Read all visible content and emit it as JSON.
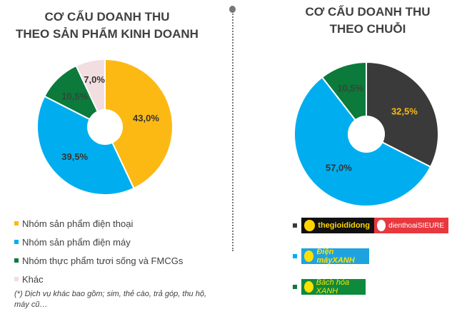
{
  "chart_data": [
    {
      "type": "pie",
      "title_line1": "CƠ CẤU DOANH THU",
      "title_line2": "THEO SẢN PHẨM KINH DOANH",
      "categories": [
        "Nhóm sản phẩm điện thoại",
        "Nhóm sản phẩm điện máy",
        "Nhóm thực phẩm tươi sống và FMCGs",
        "Khác"
      ],
      "values": [
        43.0,
        39.5,
        10.5,
        7.0
      ],
      "labels": [
        "43,0%",
        "39,5%",
        "10,5%",
        "7,0%"
      ],
      "colors": [
        "#FDB913",
        "#00AEEF",
        "#0B7A3B",
        "#F2DDE0"
      ],
      "label_colors": [
        "#333333",
        "#333333",
        "#2E4A36",
        "#333333"
      ],
      "legend": "bottom-left"
    },
    {
      "type": "pie",
      "title_line1": "CƠ CẤU DOANH THU",
      "title_line2": "THEO CHUỖI",
      "categories": [
        "thegioididong + dienthoaiSIEURE",
        "Điện máy XANH",
        "Bách hóa XANH"
      ],
      "values": [
        32.5,
        57.0,
        10.5
      ],
      "labels": [
        "32,5%",
        "57,0%",
        "10,5%"
      ],
      "colors": [
        "#3A3A3A",
        "#00AEEF",
        "#0B7A3B"
      ],
      "label_colors": [
        "#FDB913",
        "#333333",
        "#2E4A36"
      ],
      "legend": "bottom-right"
    }
  ],
  "note": "(*) Dịch vụ khác bao gồm; sim, thẻ cào, trả góp, thu hộ, máy cũ…",
  "logos": {
    "tgdd": "thegioididong",
    "sieure": "dienthoaiSIEURE",
    "dmx": "Điện máyXANH",
    "bhx": "Bách hóa XANH"
  }
}
